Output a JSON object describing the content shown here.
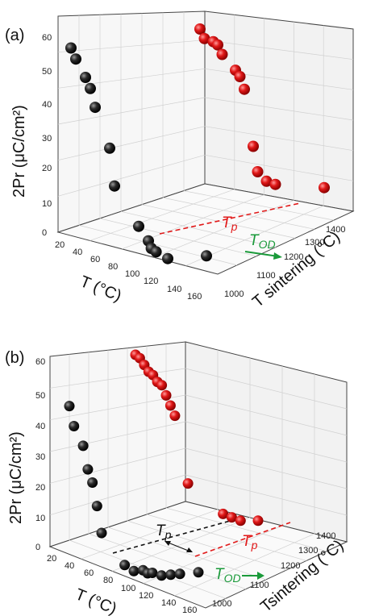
{
  "chart_data": [
    {
      "type": "scatter",
      "panel_label": "(a)",
      "projection": "3d",
      "axes": {
        "z": {
          "label": "2Pr (μC/cm²)",
          "ticks": [
            "0",
            "10",
            "20",
            "30",
            "40",
            "50",
            "60"
          ],
          "range": [
            0,
            60
          ]
        },
        "x": {
          "label": "T (°C)",
          "ticks": [
            "20",
            "40",
            "60",
            "80",
            "100",
            "120",
            "140",
            "160"
          ],
          "range": [
            20,
            160
          ]
        },
        "y": {
          "label": "T sintering (°C)",
          "ticks": [
            "1000",
            "1100",
            "1200",
            "1300",
            "1400"
          ],
          "range": [
            1000,
            1400
          ]
        }
      },
      "series": [
        {
          "color": "#111111",
          "points": [
            {
              "x": 20,
              "z": 58
            },
            {
              "x": 25,
              "z": 55
            },
            {
              "x": 35,
              "z": 50
            },
            {
              "x": 40,
              "z": 47
            },
            {
              "x": 45,
              "z": 42
            },
            {
              "x": 60,
              "z": 31
            },
            {
              "x": 65,
              "z": 21
            },
            {
              "x": 90,
              "z": 10
            },
            {
              "x": 100,
              "z": 6
            },
            {
              "x": 103,
              "z": 4
            },
            {
              "x": 108,
              "z": 3
            },
            {
              "x": 120,
              "z": 1
            },
            {
              "x": 160,
              "z": 1
            }
          ]
        },
        {
          "color": "#e11a1a",
          "points": [
            {
              "x": 20,
              "z": 60
            },
            {
              "x": 25,
              "z": 57
            },
            {
              "x": 35,
              "z": 56
            },
            {
              "x": 40,
              "z": 55
            },
            {
              "x": 45,
              "z": 52
            },
            {
              "x": 60,
              "z": 47
            },
            {
              "x": 65,
              "z": 45
            },
            {
              "x": 70,
              "z": 41
            },
            {
              "x": 80,
              "z": 23
            },
            {
              "x": 85,
              "z": 15
            },
            {
              "x": 95,
              "z": 12
            },
            {
              "x": 105,
              "z": 11
            },
            {
              "x": 160,
              "z": 10
            }
          ]
        }
      ],
      "annotations": [
        {
          "text": "Tp",
          "color": "#e11a1a"
        },
        {
          "text": "TOD",
          "color": "#1a9a3a"
        }
      ]
    },
    {
      "type": "scatter",
      "panel_label": "(b)",
      "projection": "3d",
      "axes": {
        "z": {
          "label": "2Pr (μC/cm²)",
          "ticks": [
            "0",
            "10",
            "20",
            "30",
            "40",
            "50",
            "60"
          ],
          "range": [
            0,
            60
          ]
        },
        "x": {
          "label": "T (°C)",
          "ticks": [
            "20",
            "40",
            "60",
            "80",
            "100",
            "120",
            "140",
            "160"
          ],
          "range": [
            20,
            160
          ]
        },
        "y": {
          "label": "Tsintering (°C)",
          "ticks": [
            "1000",
            "1100",
            "1200",
            "1300",
            "1400"
          ],
          "range": [
            1000,
            1400
          ]
        }
      },
      "series": [
        {
          "color": "#111111",
          "points": [
            {
              "x": 20,
              "z": 53
            },
            {
              "x": 25,
              "z": 47
            },
            {
              "x": 35,
              "z": 41
            },
            {
              "x": 40,
              "z": 34
            },
            {
              "x": 45,
              "z": 30
            },
            {
              "x": 50,
              "z": 23
            },
            {
              "x": 55,
              "z": 15
            },
            {
              "x": 80,
              "z": 5
            },
            {
              "x": 90,
              "z": 3
            },
            {
              "x": 100,
              "z": 3
            },
            {
              "x": 105,
              "z": 2
            },
            {
              "x": 110,
              "z": 2
            },
            {
              "x": 120,
              "z": 1
            },
            {
              "x": 130,
              "z": 1
            },
            {
              "x": 140,
              "z": 1
            },
            {
              "x": 160,
              "z": 1
            }
          ]
        },
        {
          "color": "#e11a1a",
          "points": [
            {
              "x": 20,
              "z": 60
            },
            {
              "x": 25,
              "z": 59
            },
            {
              "x": 30,
              "z": 57
            },
            {
              "x": 35,
              "z": 55
            },
            {
              "x": 40,
              "z": 54
            },
            {
              "x": 45,
              "z": 52
            },
            {
              "x": 50,
              "z": 51
            },
            {
              "x": 55,
              "z": 48
            },
            {
              "x": 60,
              "z": 45
            },
            {
              "x": 65,
              "z": 42
            },
            {
              "x": 80,
              "z": 22
            },
            {
              "x": 120,
              "z": 13
            },
            {
              "x": 130,
              "z": 12
            },
            {
              "x": 140,
              "z": 11
            },
            {
              "x": 160,
              "z": 11
            }
          ]
        }
      ],
      "annotations": [
        {
          "text": "Tp",
          "color": "#111111"
        },
        {
          "text": "Tp",
          "color": "#e11a1a"
        },
        {
          "text": "TOD",
          "color": "#1a9a3a"
        }
      ]
    }
  ]
}
